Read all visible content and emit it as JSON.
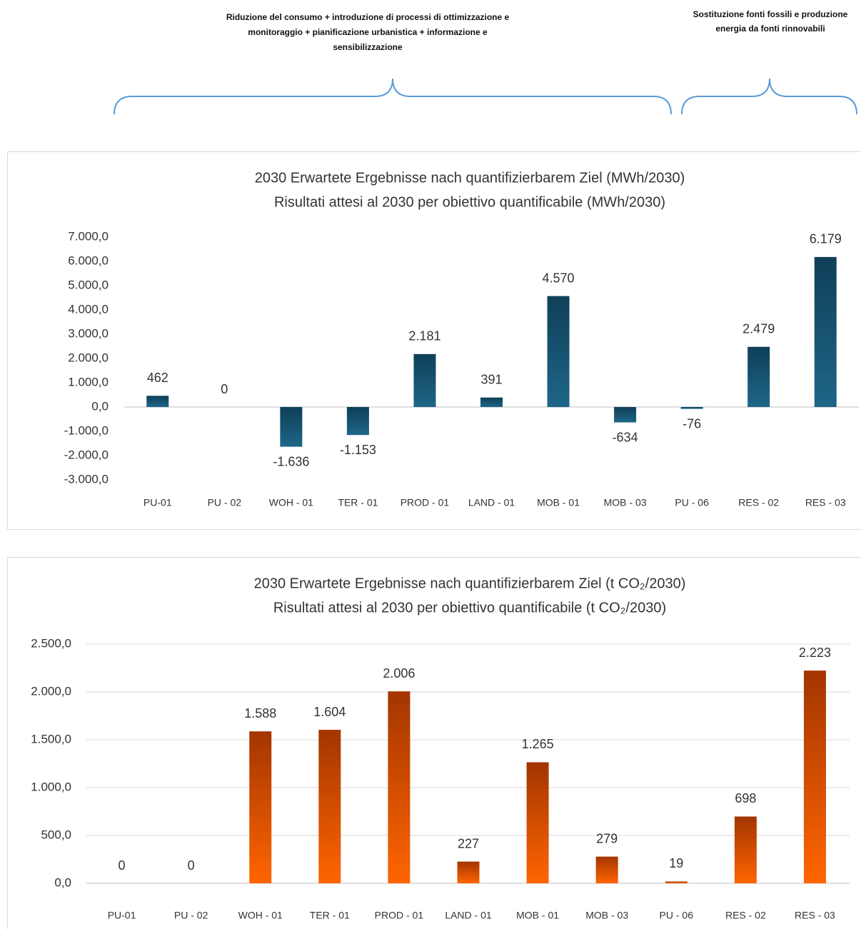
{
  "annotations": [
    "Riduzione del consumo + introduzione di processi di ottimizzazione e monitoraggio + pianificazione urbanistica + informazione e sensibilizzazione",
    "Sostituzione fonti fossili e produzione energia da fonti rinnovabili"
  ],
  "chart_data": [
    {
      "type": "bar",
      "title": "2030 Erwartete Ergebnisse nach quantifizierbarem Ziel (MWh/2030)",
      "subtitle": "Risultati attesi al 2030 per obiettivo quantificabile (MWh/2030)",
      "categories": [
        "PU-01",
        "PU - 02",
        "WOH - 01",
        "TER - 01",
        "PROD - 01",
        "LAND - 01",
        "MOB - 01",
        "MOB - 03",
        "PU - 06",
        "RES - 02",
        "RES - 03"
      ],
      "values": [
        462,
        0,
        -1636,
        -1153,
        2181,
        391,
        4570,
        -634,
        -76,
        2479,
        6179
      ],
      "value_labels": [
        "462",
        "0",
        "-1.636",
        "-1.153",
        "2.181",
        "391",
        "4.570",
        "-634",
        "-76",
        "2.479",
        "6.179"
      ],
      "colors": [
        "#0f3f58",
        "#1e6688"
      ],
      "grid": false,
      "ylim": [
        -3000,
        7000
      ],
      "yticks": [
        {
          "value": -3000,
          "label": "-3.000,0"
        },
        {
          "value": -2000,
          "label": "-2.000,0"
        },
        {
          "value": -1000,
          "label": "-1.000,0"
        },
        {
          "value": 0,
          "label": "0,0"
        },
        {
          "value": 1000,
          "label": "1.000,0"
        },
        {
          "value": 2000,
          "label": "2.000,0"
        },
        {
          "value": 3000,
          "label": "3.000,0"
        },
        {
          "value": 4000,
          "label": "4.000,0"
        },
        {
          "value": 5000,
          "label": "5.000,0"
        },
        {
          "value": 6000,
          "label": "6.000,0"
        },
        {
          "value": 7000,
          "label": "7.000,0"
        }
      ]
    },
    {
      "type": "bar",
      "title": "2030 Erwartete Ergebnisse nach quantifizierbarem Ziel (t CO₂/2030)",
      "subtitle": "Risultati attesi al 2030 per obiettivo quantificabile (t CO₂/2030)",
      "categories": [
        "PU-01",
        "PU - 02",
        "WOH - 01",
        "TER - 01",
        "PROD - 01",
        "LAND - 01",
        "MOB - 01",
        "MOB - 03",
        "PU - 06",
        "RES - 02",
        "RES - 03"
      ],
      "values": [
        0,
        0,
        1588,
        1604,
        2006,
        227,
        1265,
        279,
        19,
        698,
        2223
      ],
      "value_labels": [
        "0",
        "0",
        "1.588",
        "1.604",
        "2.006",
        "227",
        "1.265",
        "279",
        "19",
        "698",
        "2.223"
      ],
      "colors": [
        "#a33500",
        "#ff6500"
      ],
      "grid": true,
      "ylim": [
        0,
        2500
      ],
      "yticks": [
        {
          "value": 0,
          "label": "0,0"
        },
        {
          "value": 500,
          "label": "500,0"
        },
        {
          "value": 1000,
          "label": "1.000,0"
        },
        {
          "value": 1500,
          "label": "1.500,0"
        },
        {
          "value": 2000,
          "label": "2.000,0"
        },
        {
          "value": 2500,
          "label": "2.500,0"
        }
      ]
    }
  ]
}
